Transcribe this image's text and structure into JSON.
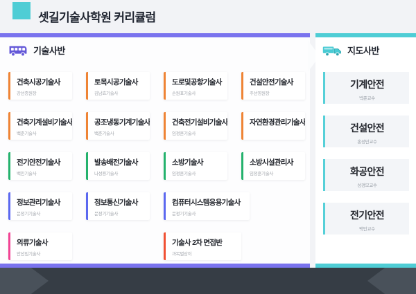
{
  "page_title": "셋길기술사학원 커리큘럼",
  "colors": {
    "teal": "#4fcdd5",
    "purple": "#7a73ee",
    "orange": "#ef8435",
    "green": "#24b26d",
    "indigo": "#5b68f0",
    "pink": "#f24394",
    "red": "#f15134"
  },
  "main_section": {
    "title": "기술사반",
    "icon": "bus-icon",
    "cards": [
      {
        "title": "건축시공기술사",
        "subtitle": "강선종원장",
        "accent": "orange"
      },
      {
        "title": "토목시공기술사",
        "subtitle": "김남효기술사",
        "accent": "orange"
      },
      {
        "title": "도로및공항기술사",
        "subtitle": "손원표기술사",
        "accent": "orange"
      },
      {
        "title": "건설안전기술사",
        "subtitle": "주선영원장",
        "accent": "orange"
      },
      {
        "title": "건축기계설비기술사",
        "subtitle": "백준기술사",
        "accent": "orange"
      },
      {
        "title": "공조냉동기계기술사",
        "subtitle": "백준기술사",
        "accent": "orange"
      },
      {
        "title": "건축전기설비기술사",
        "subtitle": "임정훈기술사",
        "accent": "orange"
      },
      {
        "title": "자연환경관리기술사",
        "subtitle": "",
        "accent": "orange"
      },
      {
        "title": "전기안전기술사",
        "subtitle": "백인기술사",
        "accent": "green"
      },
      {
        "title": "발송배전기술사",
        "subtitle": "나성용기술사",
        "accent": "green"
      },
      {
        "title": "소방기술사",
        "subtitle": "임정훈기술사",
        "accent": "green"
      },
      {
        "title": "소방시설관리사",
        "subtitle": "임정훈기술사",
        "accent": "green"
      },
      {
        "title": "정보관리기술사",
        "subtitle": "문정기기술사",
        "accent": "indigo"
      },
      {
        "title": "정보통신기술사",
        "subtitle": "문정기기술사",
        "accent": "indigo"
      },
      {
        "title": "컴퓨터시스템응용기술사",
        "subtitle": "문정기기술사",
        "accent": "indigo"
      },
      {
        "title": "의류기술사",
        "subtitle": "안선임기술사",
        "accent": "pink"
      },
      {
        "title": "기술사 2차 면접반",
        "subtitle": "과목별상이",
        "accent": "red"
      }
    ]
  },
  "side_section": {
    "title": "지도사반",
    "icon": "truck-icon",
    "items": [
      {
        "title": "기계안전",
        "subtitle": "박준교수"
      },
      {
        "title": "건설안전",
        "subtitle": "홍성민교수"
      },
      {
        "title": "화공안전",
        "subtitle": "성경모교수"
      },
      {
        "title": "전기안전",
        "subtitle": "백인교수"
      }
    ]
  }
}
